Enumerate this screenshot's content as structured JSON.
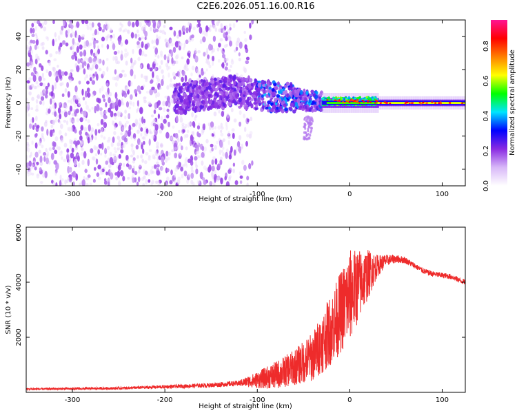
{
  "title": "C2E6.2026.051.16.00.R16",
  "colors": {
    "spectrogram_base": "#7a22e8",
    "snr_line": "#ee2b2b",
    "background": "#ffffff"
  },
  "chart_data": [
    {
      "type": "heatmap",
      "name": "spectrogram",
      "xlabel": "Height of straight line (km)",
      "ylabel": "Frequency (Hz)",
      "xlim": [
        -350,
        125
      ],
      "ylim": [
        -50,
        50
      ],
      "xticks": [
        -300,
        -200,
        -100,
        0,
        100
      ],
      "yticks": [
        -40,
        -20,
        0,
        20,
        40
      ],
      "colorbar": {
        "label": "Normalized spectral amplitude",
        "range": [
          0.0,
          0.95
        ],
        "ticks": [
          0.0,
          0.2,
          0.4,
          0.6,
          0.8
        ],
        "tick_labels": [
          "0.0",
          "0.2",
          "0.4",
          "0.6",
          "0.8"
        ],
        "colormap": [
          "#ffffff",
          "#d8b8f8",
          "#8a2be2",
          "#0000ff",
          "#00e5ff",
          "#00ff00",
          "#ffff00",
          "#ff8000",
          "#ff0000",
          "#ff1493"
        ]
      },
      "regions": [
        {
          "description": "noise scatter",
          "x_range": [
            -350,
            -110
          ],
          "freq_range": [
            -50,
            50
          ],
          "amplitude": 0.05
        },
        {
          "description": "broadening signal",
          "x_range": [
            -190,
            -30
          ],
          "freq_range": [
            -15,
            15
          ],
          "amplitude": 0.25
        },
        {
          "description": "converging signal",
          "x_range": [
            -30,
            30
          ],
          "freq_range": [
            -5,
            6
          ],
          "amplitude": 0.6
        },
        {
          "description": "narrow line near 0 Hz",
          "x_range": [
            30,
            125
          ],
          "freq_range": [
            -1,
            1
          ],
          "amplitude": 0.85
        }
      ]
    },
    {
      "type": "line",
      "name": "snr",
      "xlabel": "Height of straight line (km)",
      "ylabel": "SNR (10 * v/v)",
      "xlim": [
        -350,
        125
      ],
      "ylim": [
        0,
        6000
      ],
      "xticks": [
        -300,
        -200,
        -100,
        0,
        100
      ],
      "yticks": [
        2000,
        4000,
        6000
      ],
      "series": [
        {
          "name": "SNR envelope",
          "x": [
            -350,
            -300,
            -250,
            -200,
            -150,
            -120,
            -100,
            -80,
            -60,
            -40,
            -30,
            -20,
            -10,
            0,
            10,
            20,
            30,
            40,
            50,
            60,
            70,
            80,
            90,
            100,
            110,
            120,
            125
          ],
          "y": [
            120,
            130,
            150,
            200,
            260,
            330,
            450,
            620,
            900,
            1300,
            1800,
            2300,
            2900,
            3500,
            3900,
            4300,
            4600,
            4800,
            4850,
            4800,
            4600,
            4400,
            4300,
            4250,
            4200,
            4050,
            4000
          ],
          "noise": [
            40,
            40,
            50,
            60,
            80,
            100,
            300,
            500,
            650,
            900,
            1100,
            1300,
            1500,
            1700,
            1300,
            900,
            400,
            200,
            150,
            120,
            100,
            100,
            100,
            100,
            100,
            100,
            100
          ]
        }
      ]
    }
  ]
}
